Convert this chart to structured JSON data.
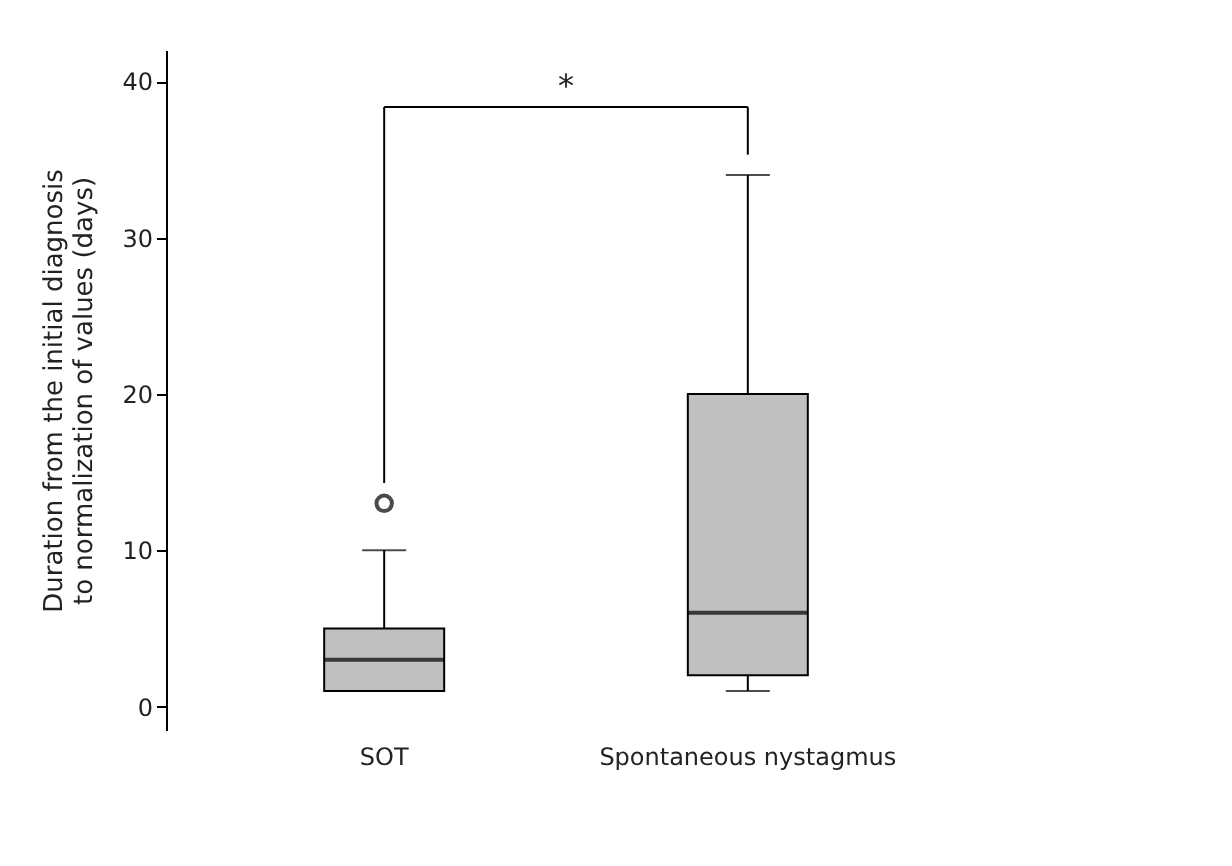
{
  "chart_data": {
    "type": "box",
    "categories": [
      "SOT",
      "Spontaneous nystagmus"
    ],
    "ylabel": "Duration from the initial diagnosis to normalization of values (days)",
    "boxes": [
      {
        "low": 1,
        "q1": 1,
        "median": 3,
        "q3": 5,
        "high": 10,
        "outliers": [
          13
        ]
      },
      {
        "low": 1,
        "q1": 2,
        "median": 6,
        "q3": 20,
        "high": 34
      }
    ],
    "color": "#c0c0c0",
    "ylim": [
      -1.5,
      42
    ],
    "yticks": [
      0,
      10,
      20,
      30,
      40
    ],
    "grid": false,
    "annotations": [
      "*"
    ]
  }
}
